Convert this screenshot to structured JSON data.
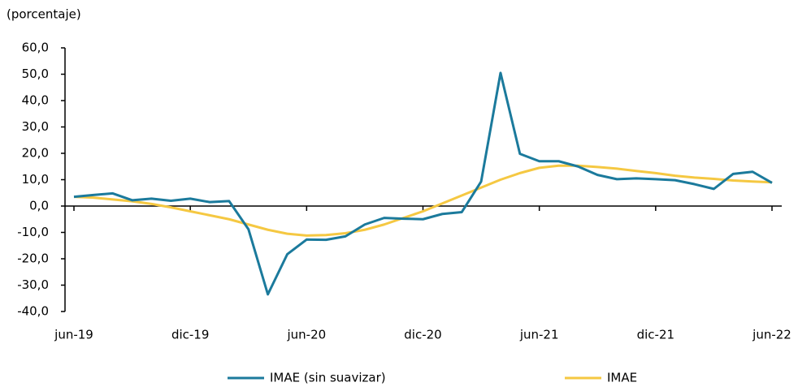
{
  "chart_data": {
    "type": "line",
    "subtitle": "(porcentaje)",
    "categories": [
      "jun-19",
      null,
      null,
      null,
      null,
      null,
      "dic-19",
      null,
      null,
      null,
      null,
      null,
      "jun-20",
      null,
      null,
      null,
      null,
      null,
      "dic-20",
      null,
      null,
      null,
      null,
      null,
      "jun-21",
      null,
      null,
      null,
      null,
      null,
      "dic-21",
      null,
      null,
      null,
      null,
      null,
      "jun-22"
    ],
    "series": [
      {
        "name": "IMAE (sin suavizar)",
        "color": "#1b7a9c",
        "values": [
          3.5,
          4.2,
          4.8,
          2.2,
          2.8,
          2.0,
          2.8,
          1.5,
          1.9,
          -8.8,
          -33.5,
          -18.3,
          -12.7,
          -12.8,
          -11.5,
          -7.0,
          -4.5,
          -4.8,
          -5.0,
          -3.0,
          -2.3,
          9.3,
          50.5,
          19.8,
          17.0,
          17.0,
          15.0,
          11.8,
          10.2,
          10.5,
          10.2,
          9.8,
          8.3,
          6.5,
          12.2,
          13.0,
          8.8
        ]
      },
      {
        "name": "IMAE",
        "color": "#f5c842",
        "values": [
          3.5,
          3.2,
          2.5,
          1.8,
          0.8,
          -0.5,
          -2.0,
          -3.5,
          -5.0,
          -7.0,
          -9.0,
          -10.5,
          -11.2,
          -11.0,
          -10.3,
          -9.0,
          -7.0,
          -4.5,
          -2.0,
          1.0,
          4.0,
          7.0,
          10.0,
          12.5,
          14.5,
          15.3,
          15.3,
          14.8,
          14.2,
          13.3,
          12.5,
          11.5,
          10.8,
          10.3,
          9.7,
          9.3,
          9.0
        ]
      }
    ],
    "ylim": [
      -40,
      60
    ],
    "yticks": [
      {
        "value": -40,
        "label": "-40,0"
      },
      {
        "value": -30,
        "label": "-30,0"
      },
      {
        "value": -20,
        "label": "-20,0"
      },
      {
        "value": -10,
        "label": "-10,0"
      },
      {
        "value": 0,
        "label": "0,0"
      },
      {
        "value": 10,
        "label": "10,0"
      },
      {
        "value": 20,
        "label": "20,0"
      },
      {
        "value": 30,
        "label": "30,0"
      },
      {
        "value": 40,
        "label": "40,0"
      },
      {
        "value": 50,
        "label": "50,0"
      },
      {
        "value": 60,
        "label": "60,0"
      }
    ],
    "grid": false
  }
}
